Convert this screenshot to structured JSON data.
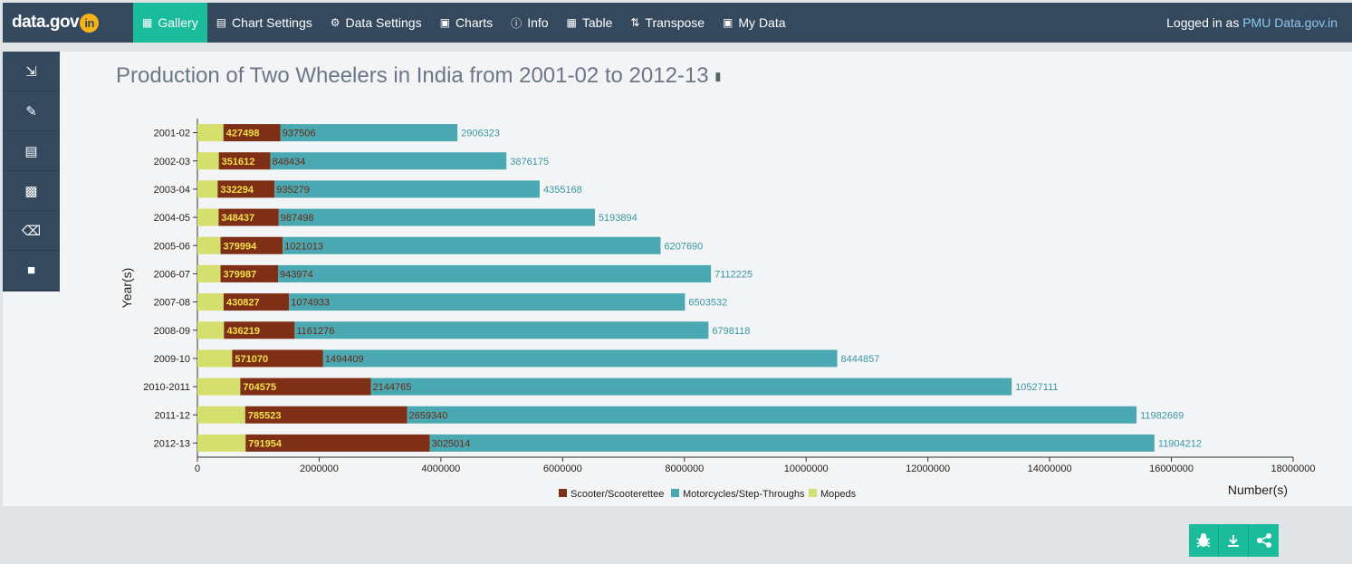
{
  "app": {
    "logo_text": "data.gov",
    "logo_badge": "in"
  },
  "nav": [
    {
      "label": "Gallery",
      "icon": "image-icon",
      "active": true
    },
    {
      "label": "Chart Settings",
      "icon": "bar-chart-icon"
    },
    {
      "label": "Data Settings",
      "icon": "gear-icon"
    },
    {
      "label": "Charts",
      "icon": "presentation-icon"
    },
    {
      "label": "Info",
      "icon": "info-icon"
    },
    {
      "label": "Table",
      "icon": "table-icon"
    },
    {
      "label": "Transpose",
      "icon": "transpose-icon"
    },
    {
      "label": "My Data",
      "icon": "monitor-icon"
    }
  ],
  "user": {
    "prefix": "Logged in as",
    "name": "PMU Data.gov.in"
  },
  "sidebar": [
    "export-icon",
    "edit-icon",
    "save-icon",
    "chart-edit-icon",
    "trash-icon",
    "lock-icon"
  ],
  "title": "Production of Two Wheelers in India from 2001-02 to 2012-13",
  "chart_data": {
    "type": "bar",
    "orientation": "horizontal",
    "stacked": true,
    "title": "Production of Two Wheelers in India from 2001-02 to 2012-13",
    "xlabel": "Number(s)",
    "ylabel": "Year(s)",
    "xlim": [
      0,
      18000000
    ],
    "xticks": [
      0,
      2000000,
      4000000,
      6000000,
      8000000,
      10000000,
      12000000,
      14000000,
      16000000,
      18000000
    ],
    "grid": false,
    "legend_position": "bottom",
    "categories": [
      "2001-02",
      "2002-03",
      "2003-04",
      "2004-05",
      "2005-06",
      "2006-07",
      "2007-08",
      "2008-09",
      "2009-10",
      "2010-2011",
      "2011-12",
      "2012-13"
    ],
    "series": [
      {
        "name": "Mopeds",
        "color": "#d4df6e",
        "values": [
          427498,
          351612,
          332294,
          348437,
          379994,
          379987,
          430827,
          436219,
          571070,
          704575,
          785523,
          791954
        ]
      },
      {
        "name": "Scooter/Scooterettee",
        "color": "#7e2f15",
        "values": [
          937506,
          848434,
          935279,
          987498,
          1021013,
          943974,
          1074933,
          1161276,
          1494409,
          2144765,
          2659340,
          3025014
        ]
      },
      {
        "name": "Motorcycles/Step-Throughs",
        "color": "#4aa8b3",
        "values": [
          2906323,
          3876175,
          4355168,
          5193894,
          6207690,
          7112225,
          6503532,
          6798118,
          8444857,
          10527111,
          11982669,
          11904212
        ]
      }
    ],
    "legend_order": [
      "Scooter/Scooterettee",
      "Motorcycles/Step-Throughs",
      "Mopeds"
    ]
  }
}
